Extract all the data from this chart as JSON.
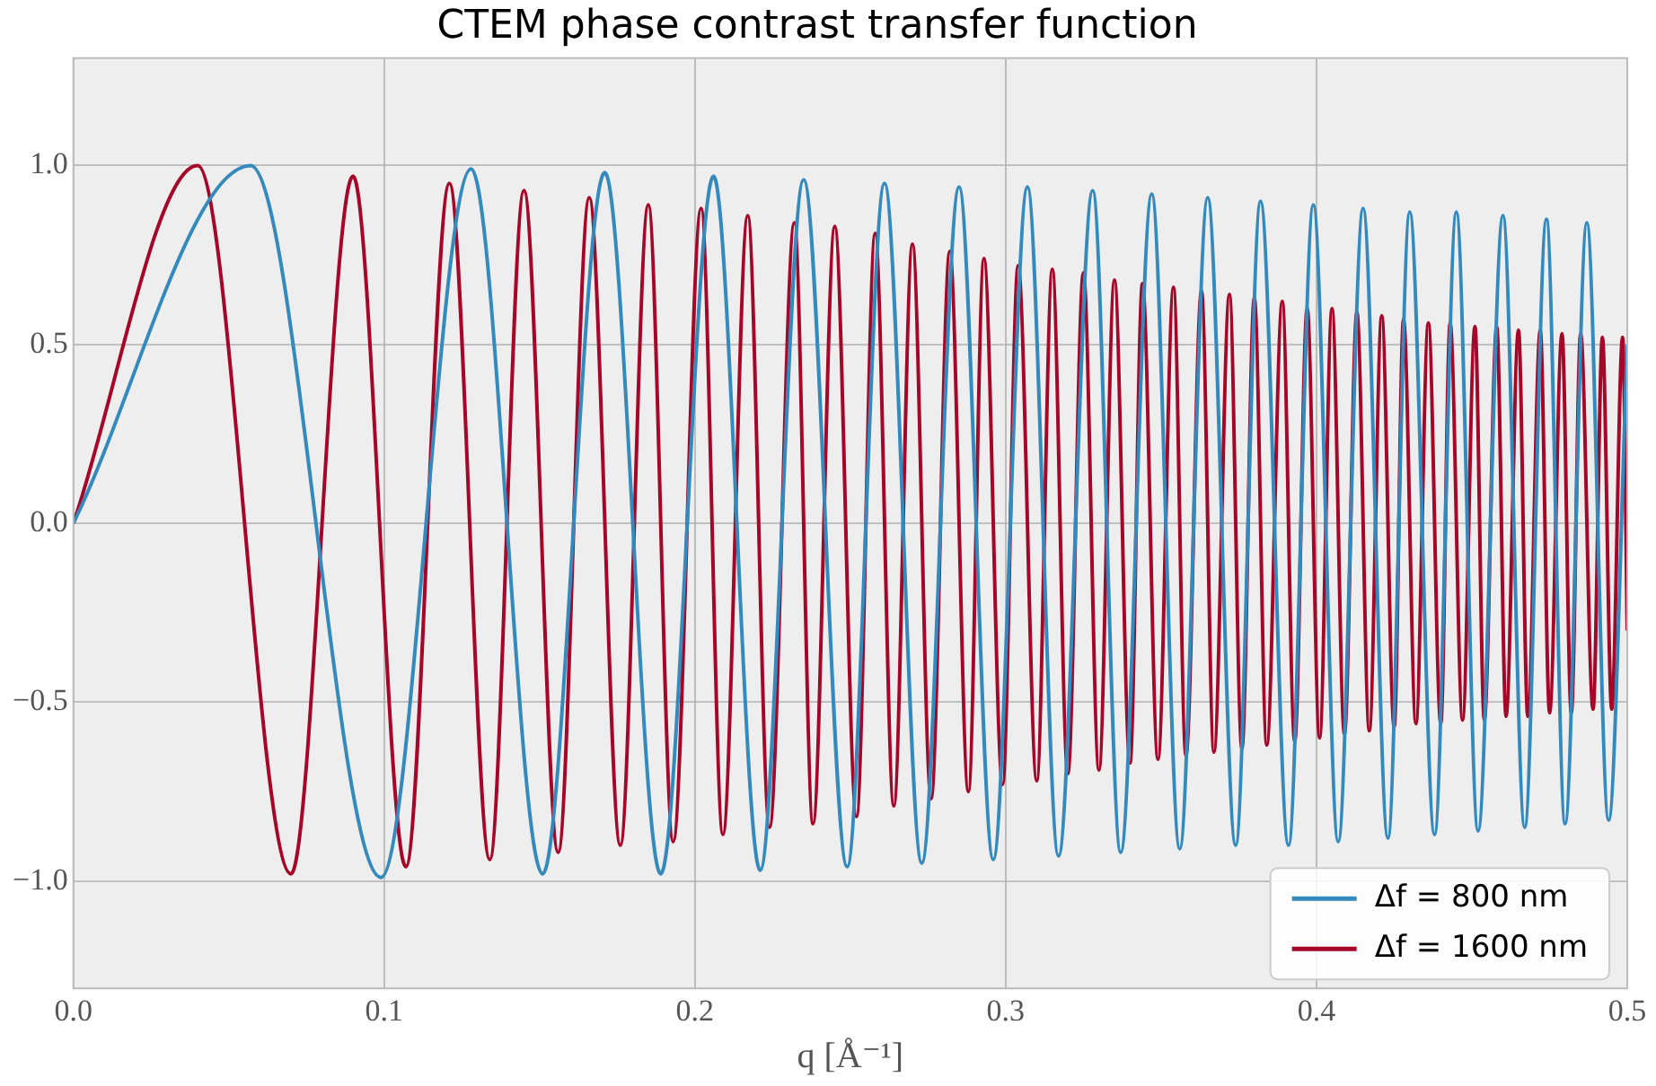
{
  "chart_data": {
    "type": "line",
    "title": "CTEM phase contrast transfer function",
    "xlabel": "q [Å⁻¹]",
    "xlim": [
      0,
      0.5
    ],
    "xticks": [
      {
        "value": 0,
        "label": "0.0"
      },
      0.1,
      0.2,
      0.3,
      0.4,
      0.5
    ],
    "ylim": [
      -1.3,
      1.3
    ],
    "yticks": [
      {
        "value": -1,
        "label": "−1.0"
      },
      {
        "value": -0.5,
        "label": "−0.5"
      },
      {
        "value": 0,
        "label": "0.0"
      },
      0.5,
      {
        "value": 1,
        "label": "1.0"
      }
    ],
    "grid": true,
    "legend": "bottom right",
    "marker": "none",
    "line_style": "solid",
    "series": [
      {
        "name": "Δf = 800 nm",
        "color": "#348abd",
        "x": [
          0,
          0.057,
          0.099,
          0.128,
          0.151,
          0.171,
          0.189,
          0.206,
          0.221,
          0.235,
          0.249,
          0.261,
          0.273,
          0.285,
          0.296,
          0.307,
          0.317,
          0.328,
          0.337,
          0.347,
          0.356,
          0.365,
          0.374,
          0.382,
          0.391,
          0.399,
          0.407,
          0.415,
          0.423,
          0.43,
          0.438,
          0.445,
          0.452,
          0.46,
          0.467,
          0.474,
          0.48,
          0.487,
          0.494,
          0.5
        ],
        "values": [
          0,
          1.0,
          -0.99,
          0.99,
          -0.98,
          0.98,
          -0.98,
          0.97,
          -0.97,
          0.96,
          -0.96,
          0.95,
          -0.95,
          0.94,
          -0.94,
          0.94,
          -0.93,
          0.93,
          -0.92,
          0.92,
          -0.91,
          0.91,
          -0.9,
          0.9,
          -0.9,
          0.89,
          -0.89,
          0.88,
          -0.88,
          0.87,
          -0.87,
          0.87,
          -0.86,
          0.86,
          -0.85,
          0.85,
          -0.84,
          0.84,
          -0.83,
          0.5
        ]
      },
      {
        "name": "Δf = 1600 nm",
        "color": "#a60628",
        "x": [
          0,
          0.04,
          0.07,
          0.09,
          0.107,
          0.121,
          0.134,
          0.145,
          0.156,
          0.166,
          0.176,
          0.185,
          0.193,
          0.202,
          0.209,
          0.217,
          0.224,
          0.232,
          0.238,
          0.245,
          0.252,
          0.258,
          0.264,
          0.27,
          0.276,
          0.282,
          0.288,
          0.293,
          0.299,
          0.304,
          0.31,
          0.315,
          0.32,
          0.325,
          0.33,
          0.335,
          0.34,
          0.344,
          0.349,
          0.354,
          0.358,
          0.363,
          0.367,
          0.372,
          0.376,
          0.38,
          0.384,
          0.389,
          0.393,
          0.397,
          0.401,
          0.405,
          0.409,
          0.413,
          0.417,
          0.421,
          0.425,
          0.428,
          0.432,
          0.436,
          0.44,
          0.443,
          0.447,
          0.451,
          0.454,
          0.458,
          0.461,
          0.465,
          0.468,
          0.472,
          0.475,
          0.479,
          0.482,
          0.485,
          0.489,
          0.492,
          0.495,
          0.4985,
          0.5
        ],
        "values": [
          0,
          1.0,
          -0.98,
          0.97,
          -0.96,
          0.95,
          -0.94,
          0.93,
          -0.92,
          0.91,
          -0.9,
          0.89,
          -0.89,
          0.88,
          -0.87,
          0.86,
          -0.85,
          0.84,
          -0.84,
          0.83,
          -0.82,
          0.81,
          -0.79,
          0.78,
          -0.77,
          0.76,
          -0.75,
          0.74,
          -0.73,
          0.72,
          -0.72,
          0.71,
          -0.7,
          0.7,
          -0.69,
          0.68,
          -0.67,
          0.67,
          -0.66,
          0.66,
          -0.65,
          0.65,
          -0.64,
          0.64,
          -0.63,
          0.63,
          -0.62,
          0.62,
          -0.61,
          0.6,
          -0.6,
          0.6,
          -0.59,
          0.59,
          -0.58,
          0.58,
          -0.57,
          0.57,
          -0.56,
          0.56,
          -0.56,
          0.56,
          -0.55,
          0.55,
          -0.55,
          0.55,
          -0.54,
          0.54,
          -0.54,
          0.54,
          -0.53,
          0.53,
          -0.53,
          0.53,
          -0.52,
          0.52,
          -0.52,
          0.52,
          -0.3
        ]
      }
    ]
  }
}
